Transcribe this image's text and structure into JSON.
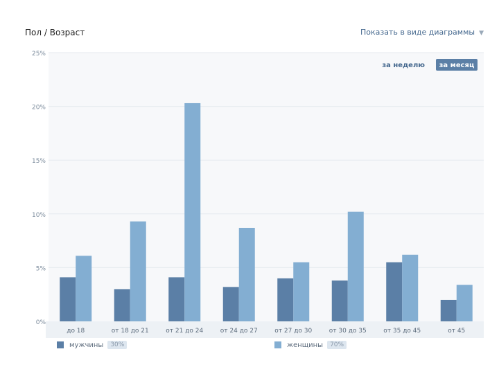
{
  "header": {
    "title": "Пол / Возраст",
    "view_label": "Показать в виде диаграммы"
  },
  "period": {
    "week_label": "за неделю",
    "month_label": "за месяц"
  },
  "colors": {
    "men": "#5b7fa6",
    "women": "#83aed2",
    "grid": "#e5eaef",
    "plot_bg": "#f7f8fa",
    "button": "#5b7fa6"
  },
  "chart_data": {
    "type": "bar",
    "categories": [
      "до 18",
      "от 18 до 21",
      "от 21 до 24",
      "от 24 до 27",
      "от 27 до 30",
      "от 30 до 35",
      "от 35 до 45",
      "от 45"
    ],
    "series": [
      {
        "name": "мужчины",
        "values": [
          4.1,
          3.0,
          4.1,
          3.2,
          4.0,
          3.8,
          5.5,
          2.0
        ]
      },
      {
        "name": "женщины",
        "values": [
          6.1,
          9.3,
          20.3,
          8.7,
          5.5,
          10.2,
          6.2,
          3.4
        ]
      }
    ],
    "ylim": [
      0,
      25
    ],
    "yticks": [
      "0%",
      "5%",
      "10%",
      "15%",
      "20%",
      "25%"
    ],
    "grid": true,
    "legend_position": "bottom"
  },
  "legend": {
    "men_label": "мужчины",
    "men_share": "30%",
    "women_label": "женщины",
    "women_share": "70%"
  }
}
